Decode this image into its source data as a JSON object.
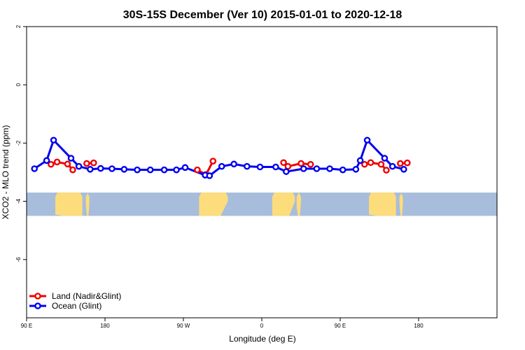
{
  "chart_data": {
    "type": "line",
    "title": "30S-15S December (Ver 10)   2015-01-01 to 2020-12-18",
    "xlabel": "Longitude (deg E)",
    "ylabel": "XCO2 - MLO trend (ppm)",
    "x_unit": "degrees east (continuous axis, 90 E through 180 E of the next cycle)",
    "xlim": [
      90,
      630
    ],
    "ylim": [
      -8,
      2
    ],
    "x_ticks": [
      {
        "value": 90,
        "label": "90 E"
      },
      {
        "value": 180,
        "label": "180"
      },
      {
        "value": 270,
        "label": "90 W"
      },
      {
        "value": 360,
        "label": "0"
      },
      {
        "value": 450,
        "label": "90 E"
      },
      {
        "value": 540,
        "label": "180"
      }
    ],
    "y_ticks": [
      {
        "value": 2,
        "label": "2"
      },
      {
        "value": 0,
        "label": "0"
      },
      {
        "value": -2,
        "label": "-2"
      },
      {
        "value": -4,
        "label": "-4"
      },
      {
        "value": -6,
        "label": "-6"
      }
    ],
    "grid": false,
    "legend_position": "bottom-left",
    "land_band": {
      "ymin": -4.5,
      "ymax": -3.7,
      "ocean_color": "#a7bddb",
      "land_color": "#fddc7c",
      "land_segments": [
        {
          "from": 123,
          "from_ymin": -4.45,
          "to": 154,
          "to_ymin": -4.5
        },
        {
          "from": 158,
          "from_ymin": -4.1,
          "to": 162,
          "to_ymin": -4.1
        },
        {
          "from": 288,
          "from_ymin": -4.5,
          "to": 321,
          "to_ymin": -4.0
        },
        {
          "from": 372,
          "from_ymin": -4.5,
          "to": 398,
          "to_ymin": -4.0
        },
        {
          "from": 400,
          "from_ymin": -4.2,
          "to": 405,
          "to_ymin": -4.0
        },
        {
          "from": 483,
          "from_ymin": -4.45,
          "to": 514,
          "to_ymin": -4.5
        },
        {
          "from": 518,
          "from_ymin": -4.1,
          "to": 522,
          "to_ymin": -4.1
        }
      ]
    },
    "series": [
      {
        "name": "Land (Nadir&Glint)",
        "color": "#ee0000",
        "segments": [
          [
            [
              118,
              -2.73
            ],
            [
              125,
              -2.65
            ],
            [
              137,
              -2.72
            ],
            [
              143,
              -2.92
            ]
          ],
          [
            [
              159,
              -2.7
            ],
            [
              167,
              -2.68
            ]
          ],
          [
            [
              286,
              -2.92
            ],
            [
              296,
              -3.08
            ],
            [
              304,
              -2.62
            ]
          ],
          [
            [
              385,
              -2.67
            ],
            [
              390,
              -2.8
            ],
            [
              405,
              -2.7
            ],
            [
              416,
              -2.73
            ]
          ],
          [
            [
              478,
              -2.73
            ],
            [
              485,
              -2.67
            ],
            [
              497,
              -2.73
            ],
            [
              503,
              -2.93
            ]
          ],
          [
            [
              519,
              -2.7
            ],
            [
              527,
              -2.68
            ]
          ]
        ]
      },
      {
        "name": "Ocean (Glint)",
        "color": "#0000ee",
        "segments": [
          [
            [
              99,
              -2.88
            ],
            [
              113,
              -2.6
            ],
            [
              121,
              -1.9
            ],
            [
              141,
              -2.52
            ],
            [
              150,
              -2.8
            ],
            [
              163,
              -2.9
            ],
            [
              175,
              -2.87
            ],
            [
              188,
              -2.88
            ],
            [
              202,
              -2.9
            ],
            [
              217,
              -2.92
            ],
            [
              232,
              -2.92
            ],
            [
              248,
              -2.92
            ],
            [
              262,
              -2.92
            ],
            [
              272,
              -2.84
            ],
            [
              295,
              -3.1
            ],
            [
              300,
              -3.12
            ],
            [
              314,
              -2.8
            ],
            [
              328,
              -2.72
            ],
            [
              343,
              -2.8
            ],
            [
              358,
              -2.82
            ],
            [
              376,
              -2.82
            ],
            [
              388,
              -2.98
            ],
            [
              408,
              -2.88
            ],
            [
              423,
              -2.88
            ],
            [
              438,
              -2.88
            ],
            [
              453,
              -2.92
            ],
            [
              468,
              -2.9
            ],
            [
              473,
              -2.6
            ],
            [
              481,
              -1.9
            ],
            [
              501,
              -2.52
            ],
            [
              510,
              -2.8
            ],
            [
              523,
              -2.9
            ]
          ]
        ]
      }
    ]
  }
}
